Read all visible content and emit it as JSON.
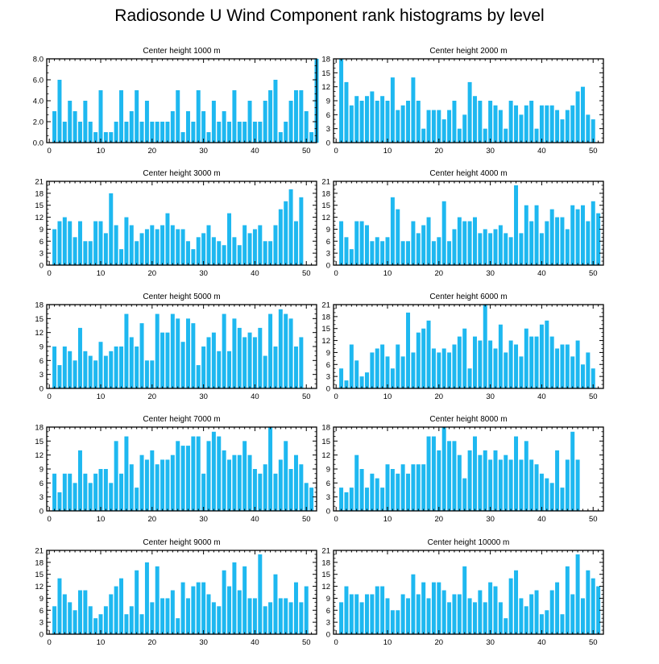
{
  "figure_title": "Radiosonde U Wind Component rank histograms by level",
  "chart_data": [
    {
      "type": "bar",
      "title": "Center height 1000 m",
      "x_ticks": [
        0,
        10,
        20,
        30,
        40,
        50
      ],
      "xlim": [
        -0.5,
        52
      ],
      "ylim": [
        0,
        8
      ],
      "y_ticks": [
        "0.0",
        "2.0",
        "4.0",
        "6.0",
        "8.0"
      ],
      "values": [
        3,
        6,
        2,
        4,
        3,
        2,
        4,
        2,
        1,
        5,
        1,
        1,
        2,
        5,
        2,
        3,
        5,
        2,
        4,
        2,
        2,
        2,
        2,
        3,
        5,
        1,
        3,
        2,
        5,
        3,
        1,
        4,
        2,
        3,
        2,
        5,
        2,
        2,
        4,
        2,
        2,
        4,
        5,
        6,
        1,
        2,
        4,
        5,
        5,
        3,
        1,
        8
      ]
    },
    {
      "type": "bar",
      "title": "Center height 2000 m",
      "x_ticks": [
        0,
        10,
        20,
        30,
        40,
        50
      ],
      "xlim": [
        -0.5,
        52
      ],
      "ylim": [
        0,
        18
      ],
      "y_ticks": [
        "0",
        "3",
        "6",
        "9",
        "12",
        "15",
        "18"
      ],
      "values": [
        18,
        13,
        8,
        10,
        9,
        10,
        11,
        9,
        10,
        9,
        14,
        7,
        8,
        9,
        14,
        9,
        3,
        7,
        7,
        7,
        5,
        7,
        9,
        3,
        6,
        13,
        10,
        9,
        3,
        9,
        8,
        7,
        3,
        9,
        8,
        6,
        8,
        9,
        3,
        8,
        8,
        8,
        7,
        5,
        7,
        8,
        11,
        12,
        6,
        5
      ]
    },
    {
      "type": "bar",
      "title": "Center height 3000 m",
      "x_ticks": [
        0,
        10,
        20,
        30,
        40,
        50
      ],
      "xlim": [
        -0.5,
        52
      ],
      "ylim": [
        0,
        21
      ],
      "y_ticks": [
        "0",
        "3",
        "6",
        "9",
        "12",
        "15",
        "18",
        "21"
      ],
      "values": [
        9,
        11,
        12,
        11,
        7,
        11,
        6,
        6,
        11,
        11,
        8,
        18,
        10,
        4,
        12,
        10,
        6,
        8,
        9,
        10,
        9,
        10,
        13,
        10,
        9,
        9,
        6,
        4,
        7,
        8,
        10,
        7,
        6,
        5,
        13,
        7,
        5,
        10,
        8,
        9,
        10,
        6,
        6,
        10,
        14,
        16,
        19,
        11,
        17
      ]
    },
    {
      "type": "bar",
      "title": "Center height 4000 m",
      "x_ticks": [
        0,
        10,
        20,
        30,
        40,
        50
      ],
      "xlim": [
        -0.5,
        52
      ],
      "ylim": [
        0,
        21
      ],
      "y_ticks": [
        "0",
        "3",
        "6",
        "9",
        "12",
        "15",
        "18",
        "21"
      ],
      "values": [
        11,
        7,
        4,
        11,
        11,
        10,
        6,
        7,
        6,
        7,
        17,
        14,
        6,
        6,
        11,
        8,
        10,
        12,
        6,
        7,
        16,
        6,
        9,
        12,
        11,
        11,
        12,
        8,
        9,
        8,
        9,
        10,
        8,
        7,
        20,
        8,
        15,
        11,
        15,
        8,
        11,
        14,
        12,
        12,
        9,
        15,
        14,
        15,
        11,
        16,
        13
      ]
    },
    {
      "type": "bar",
      "title": "Center height 5000 m",
      "x_ticks": [
        0,
        10,
        20,
        30,
        40,
        50
      ],
      "xlim": [
        -0.5,
        52
      ],
      "ylim": [
        0,
        18
      ],
      "y_ticks": [
        "0",
        "3",
        "6",
        "9",
        "12",
        "15",
        "18"
      ],
      "values": [
        9,
        5,
        9,
        8,
        6,
        13,
        8,
        7,
        6,
        10,
        7,
        8,
        9,
        9,
        16,
        11,
        9,
        14,
        6,
        6,
        16,
        12,
        12,
        16,
        15,
        10,
        15,
        14,
        5,
        9,
        11,
        12,
        8,
        16,
        8,
        15,
        13,
        11,
        12,
        11,
        13,
        7,
        16,
        9,
        17,
        16,
        15,
        9,
        11
      ]
    },
    {
      "type": "bar",
      "title": "Center height 6000 m",
      "x_ticks": [
        0,
        10,
        20,
        30,
        40,
        50
      ],
      "xlim": [
        -0.5,
        52
      ],
      "ylim": [
        0,
        21
      ],
      "y_ticks": [
        "0",
        "3",
        "6",
        "9",
        "12",
        "15",
        "18",
        "21"
      ],
      "values": [
        5,
        2,
        11,
        7,
        3,
        4,
        9,
        10,
        11,
        8,
        5,
        11,
        8,
        19,
        9,
        14,
        15,
        17,
        10,
        9,
        10,
        9,
        11,
        13,
        15,
        5,
        13,
        12,
        21,
        12,
        10,
        16,
        9,
        12,
        11,
        8,
        15,
        13,
        13,
        16,
        17,
        13,
        10,
        11,
        11,
        8,
        12,
        6,
        9,
        5
      ]
    },
    {
      "type": "bar",
      "title": "Center height 7000 m",
      "x_ticks": [
        0,
        10,
        20,
        30,
        40,
        50
      ],
      "xlim": [
        -0.5,
        52
      ],
      "ylim": [
        0,
        18
      ],
      "y_ticks": [
        "0",
        "3",
        "6",
        "9",
        "12",
        "15",
        "18"
      ],
      "values": [
        8,
        4,
        8,
        8,
        6,
        13,
        8,
        6,
        8,
        9,
        9,
        6,
        15,
        8,
        16,
        10,
        5,
        12,
        11,
        13,
        10,
        11,
        11,
        12,
        15,
        14,
        14,
        16,
        16,
        8,
        15,
        17,
        16,
        13,
        11,
        12,
        12,
        15,
        12,
        9,
        8,
        10,
        18,
        8,
        11,
        15,
        9,
        12,
        10,
        6,
        5
      ]
    },
    {
      "type": "bar",
      "title": "Center height 8000 m",
      "x_ticks": [
        0,
        10,
        20,
        30,
        40,
        50
      ],
      "xlim": [
        -0.5,
        52
      ],
      "ylim": [
        0,
        18
      ],
      "y_ticks": [
        "0",
        "3",
        "6",
        "9",
        "12",
        "15",
        "18"
      ],
      "values": [
        5,
        4,
        5,
        12,
        9,
        5,
        8,
        7,
        5,
        10,
        9,
        8,
        10,
        8,
        10,
        10,
        10,
        16,
        16,
        13,
        18,
        15,
        15,
        12,
        7,
        13,
        16,
        12,
        13,
        11,
        13,
        11,
        12,
        11,
        16,
        11,
        15,
        11,
        10,
        8,
        7,
        6,
        13,
        5,
        11,
        17,
        11
      ]
    },
    {
      "type": "bar",
      "title": "Center height 9000 m",
      "x_ticks": [
        0,
        10,
        20,
        30,
        40,
        50
      ],
      "xlim": [
        -0.5,
        52
      ],
      "ylim": [
        0,
        21
      ],
      "y_ticks": [
        "0",
        "3",
        "6",
        "9",
        "12",
        "15",
        "18",
        "21"
      ],
      "values": [
        7,
        14,
        10,
        8,
        6,
        11,
        11,
        7,
        4,
        5,
        7,
        10,
        12,
        14,
        5,
        7,
        16,
        5,
        18,
        8,
        17,
        9,
        9,
        11,
        4,
        13,
        9,
        12,
        13,
        13,
        10,
        8,
        7,
        16,
        12,
        18,
        11,
        17,
        9,
        9,
        20,
        7,
        8,
        15,
        9,
        9,
        8,
        13,
        8,
        12
      ]
    },
    {
      "type": "bar",
      "title": "Center height 10000 m",
      "x_ticks": [
        0,
        10,
        20,
        30,
        40,
        50
      ],
      "xlim": [
        -0.5,
        52
      ],
      "ylim": [
        0,
        21
      ],
      "y_ticks": [
        "0",
        "3",
        "6",
        "9",
        "12",
        "15",
        "18",
        "21"
      ],
      "values": [
        8,
        12,
        10,
        10,
        8,
        10,
        10,
        12,
        12,
        9,
        6,
        6,
        10,
        9,
        15,
        10,
        13,
        9,
        13,
        13,
        11,
        8,
        10,
        10,
        17,
        9,
        8,
        11,
        8,
        13,
        12,
        8,
        4,
        14,
        16,
        9,
        7,
        10,
        11,
        5,
        6,
        11,
        13,
        5,
        17,
        10,
        20,
        9,
        16,
        14,
        12
      ]
    }
  ]
}
